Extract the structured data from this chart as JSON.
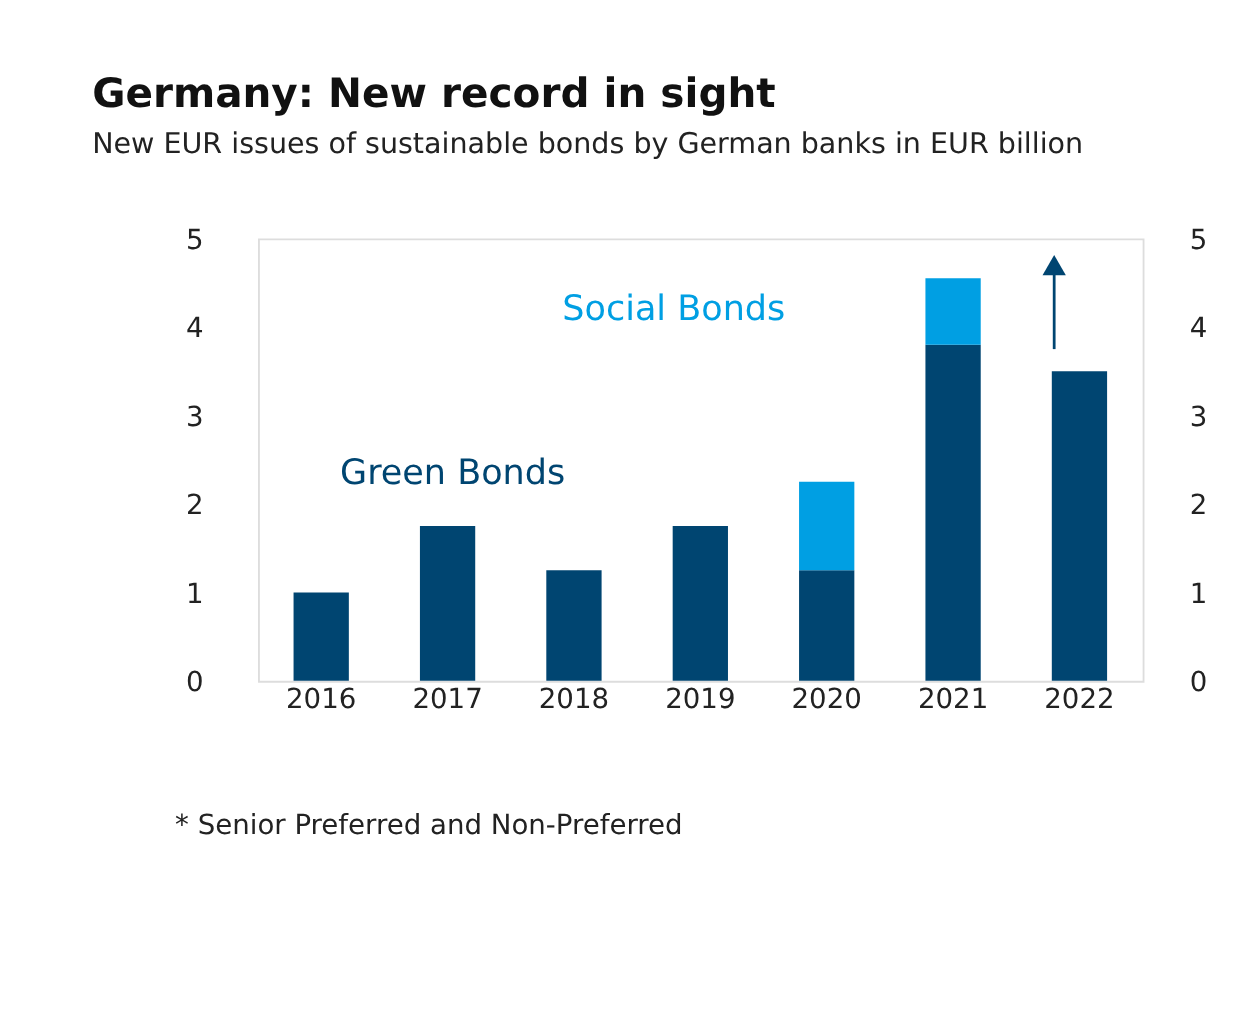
{
  "chart_data": {
    "type": "bar",
    "title": "Germany: New record in sight",
    "subtitle": "New EUR issues of sustainable bonds by German banks in EUR billion",
    "categories": [
      "2016",
      "2017",
      "2018",
      "2019",
      "2020",
      "2021",
      "2022"
    ],
    "stacked": true,
    "series": [
      {
        "name": "Green Bonds",
        "color": "#004571",
        "values": [
          1.0,
          1.75,
          1.25,
          1.75,
          1.25,
          3.8,
          3.5
        ]
      },
      {
        "name": "Social Bonds",
        "color": "#009fe3",
        "values": [
          null,
          null,
          null,
          null,
          1.0,
          0.75,
          null
        ]
      }
    ],
    "ylim": [
      0,
      5
    ],
    "yticks": [
      0,
      1,
      2,
      3,
      4,
      5
    ],
    "y2lim": [
      0,
      5
    ],
    "y2ticks": [
      0,
      1,
      2,
      3,
      4,
      5
    ],
    "grid": false,
    "legend": false,
    "annotations": [
      "* Senior Preferred and Non-Preferred"
    ]
  }
}
